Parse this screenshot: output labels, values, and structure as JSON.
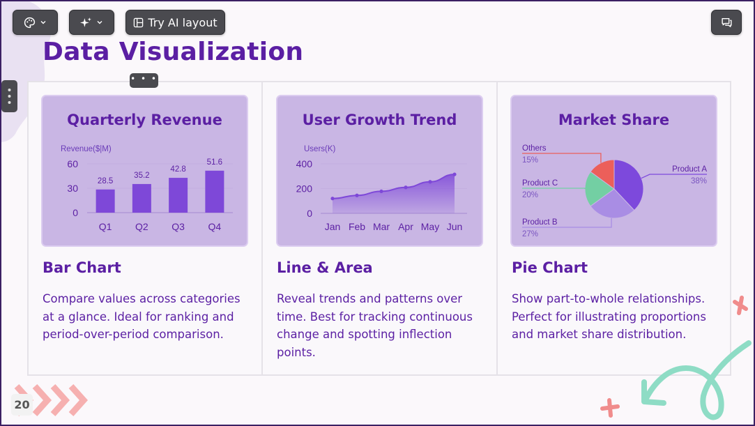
{
  "toolbar": {
    "theme_icon": "palette-icon",
    "ai_icon": "sparkle-icon",
    "ai_layout_label": "Try AI layout",
    "comment_icon": "comment-icon"
  },
  "slide": {
    "title": "Data Visualization",
    "page_number": "20",
    "colors": {
      "accent": "#5b1fa3",
      "card_bg": "#c9b6e4",
      "bar": "#7e48d8",
      "coral": "#f09090",
      "mint": "#8edcc5"
    }
  },
  "cards": [
    {
      "title": "Quarterly Revenue",
      "section_title": "Bar Chart",
      "description": "Compare values across categories at a glance. Ideal for ranking and period-over-period comparison."
    },
    {
      "title": "User Growth Trend",
      "section_title": "Line & Area",
      "description": "Reveal trends and patterns over time. Best for tracking continuous change and spotting inflection points."
    },
    {
      "title": "Market Share",
      "section_title": "Pie Chart",
      "description": "Show part-to-whole relationships. Perfect for illustrating proportions and market share distribution."
    }
  ],
  "chart_data": [
    {
      "type": "bar",
      "title": "Quarterly Revenue",
      "ylabel": "Revenue($|M)",
      "categories": [
        "Q1",
        "Q2",
        "Q3",
        "Q4"
      ],
      "values": [
        28.5,
        35.2,
        42.8,
        51.6
      ],
      "yticks": [
        0,
        30,
        60
      ],
      "ylim": [
        0,
        60
      ]
    },
    {
      "type": "area",
      "title": "User Growth Trend",
      "ylabel": "Users(K)",
      "categories": [
        "Jan",
        "Feb",
        "Mar",
        "Apr",
        "May",
        "Jun"
      ],
      "values": [
        120,
        145,
        178,
        210,
        255,
        315
      ],
      "yticks": [
        0,
        200,
        400
      ],
      "ylim": [
        0,
        400
      ]
    },
    {
      "type": "pie",
      "title": "Market Share",
      "slices": [
        {
          "label": "Product A",
          "value": 38,
          "display": "38%",
          "color": "#7d49dc"
        },
        {
          "label": "Product B",
          "value": 27,
          "display": "27%",
          "color": "#a98de4"
        },
        {
          "label": "Product C",
          "value": 20,
          "display": "20%",
          "color": "#73cfa3"
        },
        {
          "label": "Others",
          "value": 15,
          "display": "15%",
          "color": "#ec5f5a"
        }
      ]
    }
  ]
}
